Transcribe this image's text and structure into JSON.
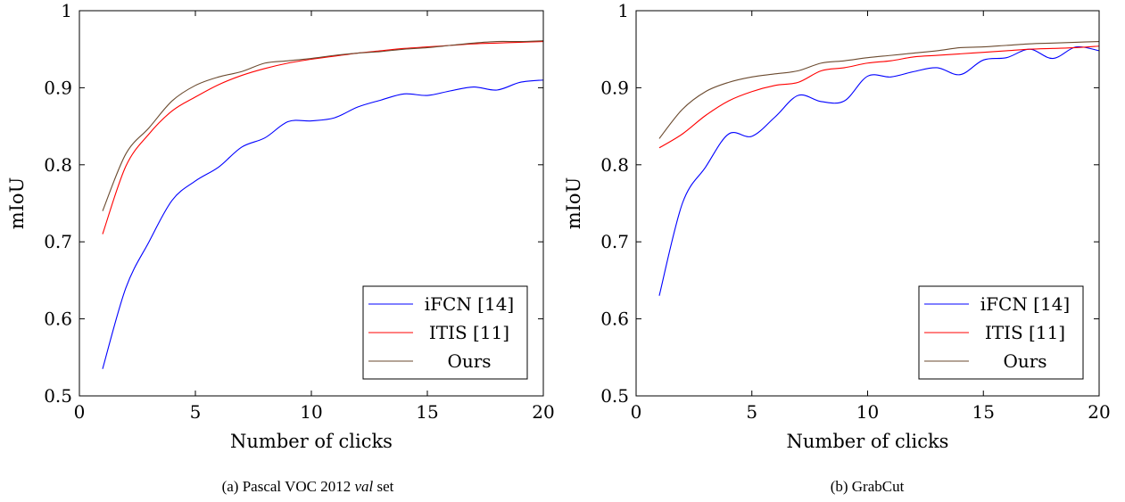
{
  "chart_data": [
    {
      "type": "line",
      "caption": "(a) Pascal VOC 2012 val set",
      "caption_parts": {
        "prefix": "(a) Pascal VOC 2012 ",
        "italic": "val",
        "suffix": " set"
      },
      "xlabel": "Number of clicks",
      "ylabel": "mIoU",
      "xlim": [
        0,
        20
      ],
      "ylim": [
        0.5,
        1
      ],
      "xticks": [
        0,
        5,
        10,
        15,
        20
      ],
      "yticks": [
        0.5,
        0.6,
        0.7,
        0.8,
        0.9,
        1
      ],
      "ytick_labels": [
        "0.5",
        "0.6",
        "0.7",
        "0.8",
        "0.9",
        "1"
      ],
      "grid": false,
      "legend_position": "bottom-right",
      "x": [
        1,
        2,
        3,
        4,
        5,
        6,
        7,
        8,
        9,
        10,
        11,
        12,
        13,
        14,
        15,
        16,
        17,
        18,
        19,
        20
      ],
      "series": [
        {
          "name": "iFCN [14]",
          "color": "#0000ff",
          "values": [
            0.535,
            0.64,
            0.7,
            0.754,
            0.779,
            0.797,
            0.823,
            0.835,
            0.856,
            0.857,
            0.861,
            0.875,
            0.884,
            0.892,
            0.89,
            0.896,
            0.901,
            0.897,
            0.907,
            0.91
          ]
        },
        {
          "name": "ITIS [11]",
          "color": "#ff0000",
          "values": [
            0.71,
            0.798,
            0.84,
            0.87,
            0.888,
            0.904,
            0.916,
            0.925,
            0.932,
            0.937,
            0.941,
            0.945,
            0.948,
            0.951,
            0.953,
            0.955,
            0.957,
            0.958,
            0.959,
            0.96
          ]
        },
        {
          "name": "Ours",
          "color": "#6b4a2f",
          "values": [
            0.74,
            0.814,
            0.848,
            0.883,
            0.903,
            0.914,
            0.921,
            0.932,
            0.935,
            0.938,
            0.942,
            0.945,
            0.947,
            0.95,
            0.952,
            0.955,
            0.958,
            0.96,
            0.96,
            0.961
          ]
        }
      ]
    },
    {
      "type": "line",
      "caption": "(b) GrabCut",
      "caption_parts": {
        "prefix": "(b) GrabCut",
        "italic": "",
        "suffix": ""
      },
      "xlabel": "Number of clicks",
      "ylabel": "mIoU",
      "xlim": [
        0,
        20
      ],
      "ylim": [
        0.5,
        1
      ],
      "xticks": [
        0,
        5,
        10,
        15,
        20
      ],
      "yticks": [
        0.5,
        0.6,
        0.7,
        0.8,
        0.9,
        1
      ],
      "ytick_labels": [
        "0.5",
        "0.6",
        "0.7",
        "0.8",
        "0.9",
        "1"
      ],
      "grid": false,
      "legend_position": "bottom-right",
      "x": [
        1,
        2,
        3,
        4,
        5,
        6,
        7,
        8,
        9,
        10,
        11,
        12,
        13,
        14,
        15,
        16,
        17,
        18,
        19,
        20
      ],
      "series": [
        {
          "name": "iFCN [14]",
          "color": "#0000ff",
          "values": [
            0.63,
            0.75,
            0.797,
            0.84,
            0.837,
            0.862,
            0.89,
            0.882,
            0.883,
            0.915,
            0.914,
            0.921,
            0.926,
            0.917,
            0.936,
            0.939,
            0.95,
            0.938,
            0.953,
            0.948
          ]
        },
        {
          "name": "ITIS [11]",
          "color": "#ff0000",
          "values": [
            0.822,
            0.84,
            0.864,
            0.883,
            0.895,
            0.903,
            0.907,
            0.922,
            0.926,
            0.932,
            0.935,
            0.94,
            0.942,
            0.944,
            0.946,
            0.948,
            0.95,
            0.951,
            0.952,
            0.954
          ]
        },
        {
          "name": "Ours",
          "color": "#6b4a2f",
          "values": [
            0.834,
            0.872,
            0.895,
            0.907,
            0.914,
            0.918,
            0.922,
            0.932,
            0.935,
            0.939,
            0.942,
            0.945,
            0.948,
            0.952,
            0.953,
            0.955,
            0.957,
            0.958,
            0.959,
            0.96
          ]
        }
      ]
    }
  ]
}
